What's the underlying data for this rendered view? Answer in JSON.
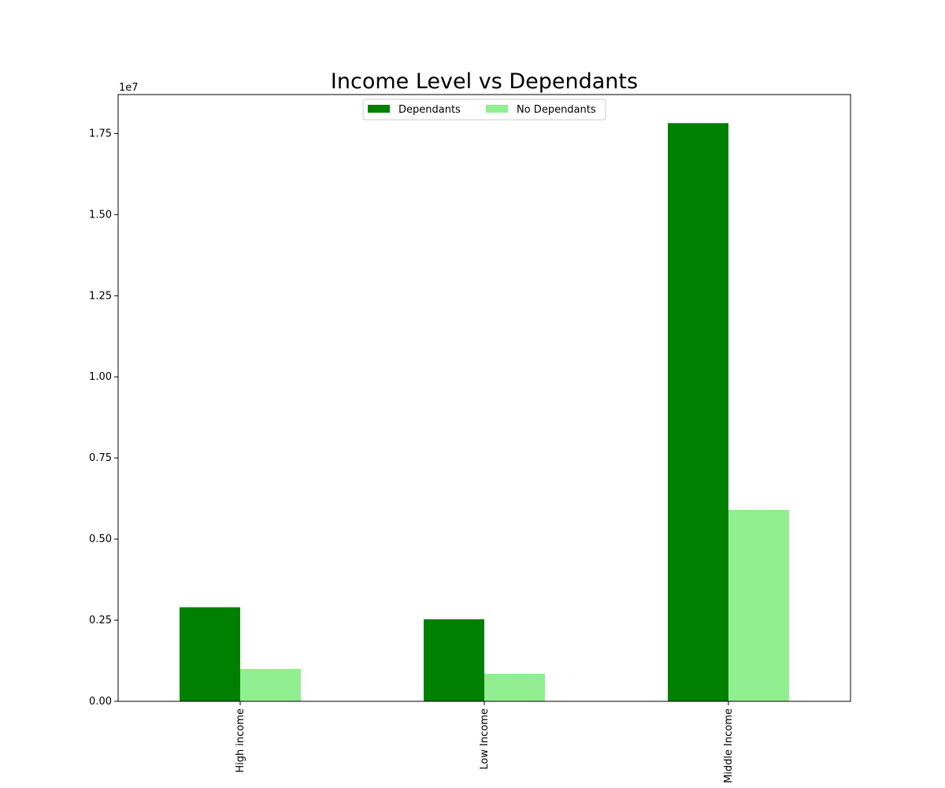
{
  "chart_data": {
    "type": "bar",
    "title": "Income Level vs Dependants",
    "xlabel": "",
    "ylabel": "",
    "y_offset_label": "1e7",
    "categories": [
      "High income",
      "Low Income",
      "Middle Income"
    ],
    "series": [
      {
        "name": "Dependants",
        "values": [
          2900000,
          2530000,
          17820000
        ],
        "color": "#008000"
      },
      {
        "name": "No Dependants",
        "values": [
          1000000,
          850000,
          5900000
        ],
        "color": "#90ee90"
      }
    ],
    "ylim": [
      0,
      18700000
    ],
    "yticks": [
      0,
      2500000,
      5000000,
      7500000,
      10000000,
      12500000,
      15000000,
      17500000
    ],
    "ytick_labels": [
      "0.00",
      "0.25",
      "0.50",
      "0.75",
      "1.00",
      "1.25",
      "1.50",
      "1.75"
    ],
    "legend": {
      "placement": "upper-center",
      "columns": 2
    },
    "grid": false
  }
}
